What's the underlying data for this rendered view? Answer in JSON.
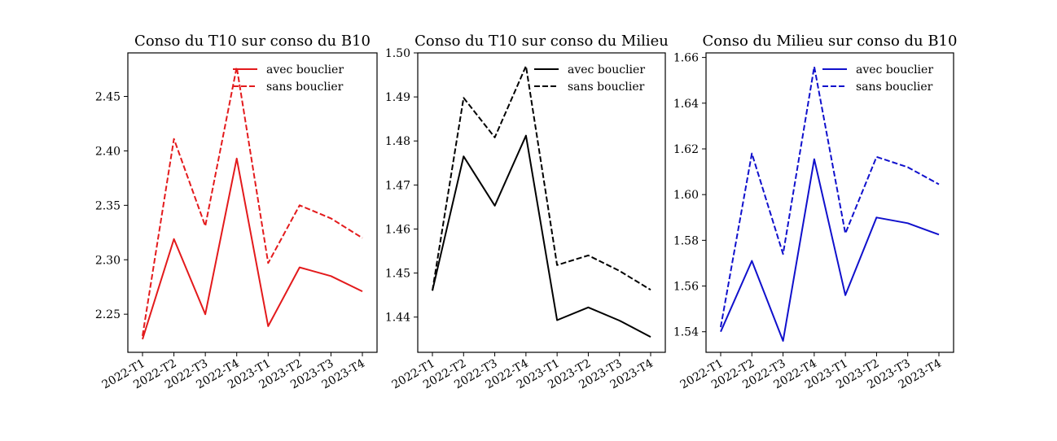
{
  "chart_data": [
    {
      "type": "line",
      "title": "Conso du T10 sur conso du B10",
      "xlabel": "",
      "ylabel": "",
      "categories": [
        "2022-T1",
        "2022-T2",
        "2022-T3",
        "2022-T4",
        "2023-T1",
        "2023-T2",
        "2023-T3",
        "2023-T4"
      ],
      "ylim": [
        2.215,
        2.49
      ],
      "yticks": [
        "2.25",
        "2.30",
        "2.35",
        "2.40",
        "2.45"
      ],
      "color": "#e31a1c",
      "legend_position": "top-right",
      "grid": false,
      "series": [
        {
          "name": "avec bouclier",
          "style": "solid",
          "values": [
            2.227,
            2.319,
            2.25,
            2.393,
            2.239,
            2.293,
            2.285,
            2.271
          ]
        },
        {
          "name": "sans bouclier",
          "style": "dashed",
          "values": [
            2.23,
            2.411,
            2.331,
            2.477,
            2.297,
            2.35,
            2.338,
            2.32
          ]
        }
      ]
    },
    {
      "type": "line",
      "title": "Conso du T10 sur conso du Milieu",
      "xlabel": "",
      "ylabel": "",
      "categories": [
        "2022-T1",
        "2022-T2",
        "2022-T3",
        "2022-T4",
        "2023-T1",
        "2023-T2",
        "2023-T3",
        "2023-T4"
      ],
      "ylim": [
        1.432,
        1.5
      ],
      "yticks": [
        "1.44",
        "1.45",
        "1.46",
        "1.47",
        "1.48",
        "1.49",
        "1.50"
      ],
      "color": "#000000",
      "legend_position": "top-right",
      "grid": false,
      "series": [
        {
          "name": "avec bouclier",
          "style": "solid",
          "values": [
            1.446,
            1.4765,
            1.4653,
            1.4812,
            1.4393,
            1.4422,
            1.4392,
            1.4355
          ]
        },
        {
          "name": "sans bouclier",
          "style": "dashed",
          "values": [
            1.446,
            1.4898,
            1.4808,
            1.497,
            1.4518,
            1.454,
            1.4505,
            1.4462
          ]
        }
      ]
    },
    {
      "type": "line",
      "title": "Conso du Milieu sur conso du B10",
      "xlabel": "",
      "ylabel": "",
      "categories": [
        "2022-T1",
        "2022-T2",
        "2022-T3",
        "2022-T4",
        "2023-T1",
        "2023-T2",
        "2023-T3",
        "2023-T4"
      ],
      "ylim": [
        1.531,
        1.662
      ],
      "yticks": [
        "1.54",
        "1.56",
        "1.58",
        "1.60",
        "1.62",
        "1.64",
        "1.66"
      ],
      "color": "#1010cc",
      "legend_position": "top-right",
      "grid": false,
      "series": [
        {
          "name": "avec bouclier",
          "style": "solid",
          "values": [
            1.54,
            1.571,
            1.536,
            1.6155,
            1.556,
            1.59,
            1.5875,
            1.5825
          ]
        },
        {
          "name": "sans bouclier",
          "style": "dashed",
          "values": [
            1.542,
            1.618,
            1.574,
            1.656,
            1.583,
            1.6165,
            1.612,
            1.6045
          ]
        }
      ]
    }
  ]
}
